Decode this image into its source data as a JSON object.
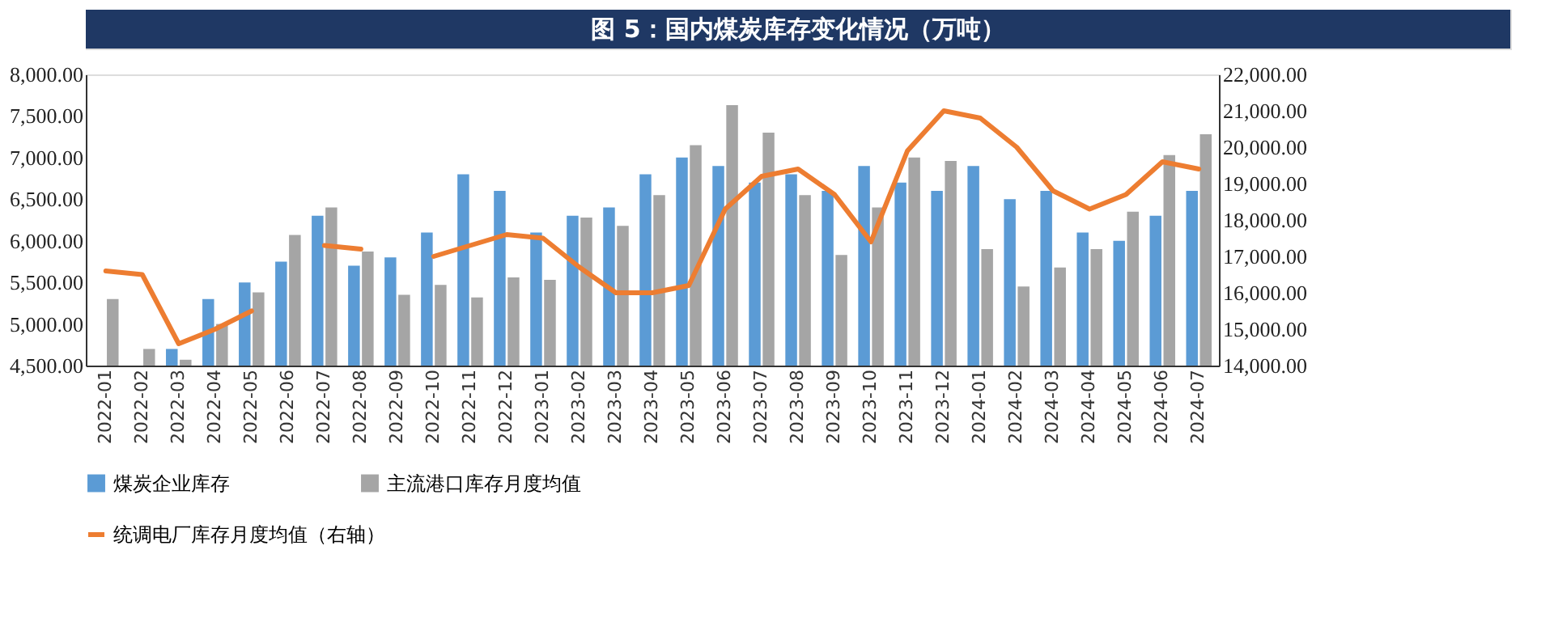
{
  "chart_data": {
    "type": "bar",
    "title": "图 5：国内煤炭库存变化情况（万吨）",
    "categories": [
      "2022-01",
      "2022-02",
      "2022-03",
      "2022-04",
      "2022-05",
      "2022-06",
      "2022-07",
      "2022-08",
      "2022-09",
      "2022-10",
      "2022-11",
      "2022-12",
      "2023-01",
      "2023-02",
      "2023-03",
      "2023-04",
      "2023-05",
      "2023-06",
      "2023-07",
      "2023-08",
      "2023-09",
      "2023-10",
      "2023-11",
      "2023-12",
      "2024-01",
      "2024-02",
      "2024-03",
      "2024-04",
      "2024-05",
      "2024-06",
      "2024-07"
    ],
    "series": [
      {
        "name": "煤炭企业库存",
        "color": "#5b9bd5",
        "values": [
          null,
          null,
          4700,
          5300,
          5500,
          5750,
          6300,
          5700,
          5800,
          6100,
          6800,
          6600,
          6100,
          6300,
          6400,
          6800,
          7000,
          6900,
          6700,
          6800,
          6600,
          6900,
          6700,
          6600,
          6900,
          6500,
          6600,
          6100,
          6000,
          6300,
          6600
        ]
      },
      {
        "name": "主流港口库存月度均值",
        "color": "#a5a5a5",
        "values": [
          5300,
          4700,
          4570,
          5000,
          5380,
          6070,
          6400,
          5870,
          5350,
          5470,
          5320,
          5560,
          5530,
          6280,
          6180,
          6550,
          7150,
          7630,
          7300,
          6550,
          5830,
          6400,
          7000,
          6960,
          5900,
          5450,
          5680,
          5900,
          6350,
          7030,
          7280
        ]
      },
      {
        "name": "统调电厂库存月度均值（右轴）",
        "color": "#ed7d31",
        "type": "line",
        "axis": "y2",
        "values": [
          16600,
          16500,
          14600,
          15000,
          15500,
          null,
          17300,
          17200,
          null,
          17000,
          17300,
          17600,
          17500,
          16700,
          16000,
          16000,
          16200,
          18300,
          19200,
          19400,
          18700,
          17400,
          19900,
          21000,
          20800,
          20000,
          18800,
          18300,
          18700,
          19600,
          19400
        ]
      }
    ],
    "ylim": [
      4500,
      8000
    ],
    "yticks": [
      {
        "value": 4500,
        "label": "4,500.00"
      },
      {
        "value": 5000,
        "label": "5,000.00"
      },
      {
        "value": 5500,
        "label": "5,500.00"
      },
      {
        "value": 6000,
        "label": "6,000.00"
      },
      {
        "value": 6500,
        "label": "6,500.00"
      },
      {
        "value": 7000,
        "label": "7,000.00"
      },
      {
        "value": 7500,
        "label": "7,500.00"
      },
      {
        "value": 8000,
        "label": "8,000.00"
      }
    ],
    "y2lim": [
      14000,
      22000
    ],
    "y2ticks": [
      {
        "value": 14000,
        "label": "14,000.00"
      },
      {
        "value": 15000,
        "label": "15,000.00"
      },
      {
        "value": 16000,
        "label": "16,000.00"
      },
      {
        "value": 17000,
        "label": "17,000.00"
      },
      {
        "value": 18000,
        "label": "18,000.00"
      },
      {
        "value": 19000,
        "label": "19,000.00"
      },
      {
        "value": 20000,
        "label": "20,000.00"
      },
      {
        "value": 21000,
        "label": "21,000.00"
      },
      {
        "value": 22000,
        "label": "22,000.00"
      }
    ],
    "grid": false,
    "legend": "bottom"
  }
}
